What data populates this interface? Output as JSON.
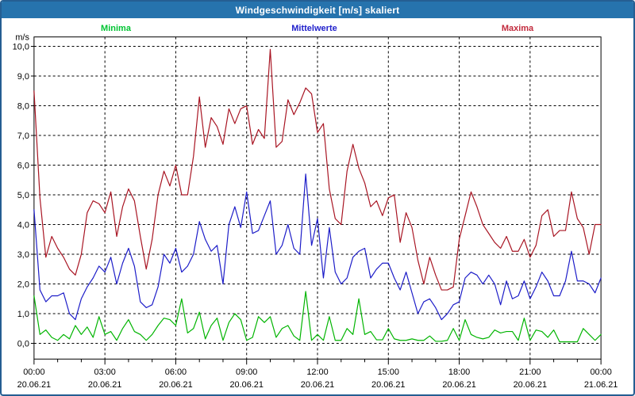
{
  "window": {
    "title": "Windgeschwindigkeit [m/s] skaliert",
    "titlebar_color": "#2673ad",
    "border_color": "#255e92"
  },
  "legend": {
    "items": [
      {
        "label": "Minima",
        "color": "#00c432"
      },
      {
        "label": "Mittelwerte",
        "color": "#2222cc"
      },
      {
        "label": "Maxima",
        "color": "#c22b3d"
      }
    ]
  },
  "chart_data": {
    "type": "line",
    "title": "Windgeschwindigkeit [m/s] skaliert",
    "ylabel": "m/s",
    "ylim": [
      0,
      10
    ],
    "grid": {
      "horizontal_step": 1,
      "vertical_step_hours": 3,
      "style": "dashed"
    },
    "y_ticks": [
      {
        "v": 0,
        "label": "0,0"
      },
      {
        "v": 1,
        "label": "1,0"
      },
      {
        "v": 2,
        "label": "2,0"
      },
      {
        "v": 3,
        "label": "3,0"
      },
      {
        "v": 4,
        "label": "4,0"
      },
      {
        "v": 5,
        "label": "5,0"
      },
      {
        "v": 6,
        "label": "6,0"
      },
      {
        "v": 7,
        "label": "7,0"
      },
      {
        "v": 8,
        "label": "8,0"
      },
      {
        "v": 9,
        "label": "9,0"
      },
      {
        "v": 10,
        "label": "10,0"
      }
    ],
    "x_axis": {
      "minor_tick_every_hours": 1,
      "major_ticks": [
        {
          "hour": 0,
          "time": "00:00",
          "date": "20.06.21"
        },
        {
          "hour": 3,
          "time": "03:00",
          "date": "20.06.21"
        },
        {
          "hour": 6,
          "time": "06:00",
          "date": "20.06.21"
        },
        {
          "hour": 9,
          "time": "09:00",
          "date": "20.06.21"
        },
        {
          "hour": 12,
          "time": "12:00",
          "date": "20.06.21"
        },
        {
          "hour": 15,
          "time": "15:00",
          "date": "20.06.21"
        },
        {
          "hour": 18,
          "time": "18:00",
          "date": "20.06.21"
        },
        {
          "hour": 21,
          "time": "21:00",
          "date": "20.06.21"
        },
        {
          "hour": 24,
          "time": "00:00",
          "date": "21.06.21"
        }
      ]
    },
    "x_step_minutes": 15,
    "x": [
      "00:00",
      "00:15",
      "00:30",
      "00:45",
      "01:00",
      "01:15",
      "01:30",
      "01:45",
      "02:00",
      "02:15",
      "02:30",
      "02:45",
      "03:00",
      "03:15",
      "03:30",
      "03:45",
      "04:00",
      "04:15",
      "04:30",
      "04:45",
      "05:00",
      "05:15",
      "05:30",
      "05:45",
      "06:00",
      "06:15",
      "06:30",
      "06:45",
      "07:00",
      "07:15",
      "07:30",
      "07:45",
      "08:00",
      "08:15",
      "08:30",
      "08:45",
      "09:00",
      "09:15",
      "09:30",
      "09:45",
      "10:00",
      "10:15",
      "10:30",
      "10:45",
      "11:00",
      "11:15",
      "11:30",
      "11:45",
      "12:00",
      "12:15",
      "12:30",
      "12:45",
      "13:00",
      "13:15",
      "13:30",
      "13:45",
      "14:00",
      "14:15",
      "14:30",
      "14:45",
      "15:00",
      "15:15",
      "15:30",
      "15:45",
      "16:00",
      "16:15",
      "16:30",
      "16:45",
      "17:00",
      "17:15",
      "17:30",
      "17:45",
      "18:00",
      "18:15",
      "18:30",
      "18:45",
      "19:00",
      "19:15",
      "19:30",
      "19:45",
      "20:00",
      "20:15",
      "20:30",
      "20:45",
      "21:00",
      "21:15",
      "21:30",
      "21:45",
      "22:00",
      "22:15",
      "22:30",
      "22:45",
      "23:00",
      "23:15",
      "23:30",
      "23:45",
      "00:00"
    ],
    "series": [
      {
        "name": "Maxima",
        "color": "#a81422",
        "values": [
          8.5,
          4.9,
          2.9,
          3.6,
          3.2,
          2.9,
          2.5,
          2.3,
          3.0,
          4.4,
          4.8,
          4.7,
          4.4,
          5.1,
          3.6,
          4.6,
          5.2,
          4.8,
          3.6,
          2.5,
          3.5,
          5.0,
          5.8,
          5.3,
          6.0,
          5.0,
          5.0,
          6.3,
          8.3,
          6.6,
          7.6,
          7.3,
          6.7,
          7.9,
          7.4,
          7.9,
          8.0,
          6.7,
          7.2,
          6.9,
          9.9,
          6.6,
          6.8,
          8.2,
          7.7,
          8.1,
          8.6,
          8.4,
          7.1,
          7.4,
          5.2,
          4.2,
          4.0,
          5.8,
          6.7,
          5.9,
          5.4,
          4.6,
          4.8,
          4.3,
          4.9,
          5.0,
          3.4,
          4.4,
          3.9,
          2.8,
          2.0,
          2.9,
          2.3,
          1.8,
          1.8,
          1.9,
          3.5,
          4.3,
          5.1,
          4.6,
          4.0,
          3.7,
          3.4,
          3.2,
          3.6,
          3.1,
          3.1,
          3.5,
          2.9,
          3.3,
          4.3,
          4.5,
          3.6,
          3.8,
          3.8,
          5.1,
          4.2,
          3.9,
          3.0,
          4.0,
          4.0
        ]
      },
      {
        "name": "Mittelwerte",
        "color": "#1c1cc8",
        "values": [
          4.5,
          1.8,
          1.4,
          1.6,
          1.6,
          1.7,
          1.0,
          0.8,
          1.5,
          1.9,
          2.2,
          2.6,
          2.4,
          2.9,
          2.0,
          2.7,
          3.2,
          2.6,
          1.4,
          1.2,
          1.3,
          1.9,
          3.0,
          2.7,
          3.2,
          2.4,
          2.6,
          3.0,
          4.1,
          3.5,
          3.1,
          3.3,
          2.0,
          4.0,
          4.6,
          3.9,
          5.1,
          3.7,
          3.8,
          4.3,
          4.8,
          3.0,
          3.3,
          4.0,
          3.2,
          3.0,
          5.7,
          3.3,
          4.2,
          2.2,
          3.9,
          2.4,
          2.0,
          2.2,
          2.9,
          3.1,
          3.2,
          2.2,
          2.5,
          2.7,
          2.7,
          2.2,
          1.8,
          2.4,
          1.7,
          1.0,
          1.4,
          1.5,
          1.2,
          0.8,
          1.0,
          1.3,
          1.4,
          2.2,
          2.4,
          2.3,
          2.0,
          2.3,
          2.0,
          1.3,
          2.1,
          1.5,
          1.6,
          2.1,
          1.5,
          1.9,
          2.4,
          2.1,
          1.6,
          1.6,
          2.1,
          3.1,
          2.1,
          2.1,
          2.0,
          1.7,
          2.2
        ]
      },
      {
        "name": "Minima",
        "color": "#00b400",
        "values": [
          1.6,
          0.3,
          0.45,
          0.2,
          0.1,
          0.3,
          0.15,
          0.6,
          0.3,
          0.55,
          0.2,
          0.9,
          0.3,
          0.4,
          0.1,
          0.5,
          0.8,
          0.4,
          0.3,
          0.1,
          0.3,
          0.6,
          0.85,
          0.8,
          0.6,
          1.5,
          0.35,
          0.5,
          1.05,
          0.15,
          0.6,
          0.85,
          0.1,
          0.7,
          1.0,
          0.8,
          0.1,
          0.2,
          0.9,
          0.7,
          0.9,
          0.2,
          0.5,
          0.6,
          0.25,
          0.1,
          1.75,
          0.1,
          0.3,
          0.1,
          0.9,
          0.1,
          0.1,
          0.5,
          0.3,
          1.5,
          0.3,
          0.4,
          0.12,
          0.12,
          0.5,
          0.15,
          0.1,
          0.1,
          0.15,
          0.1,
          0.1,
          0.25,
          0.07,
          0.07,
          0.1,
          0.5,
          0.1,
          0.8,
          0.3,
          0.2,
          0.15,
          0.2,
          0.45,
          0.35,
          0.4,
          0.4,
          0.1,
          0.85,
          0.1,
          0.45,
          0.4,
          0.2,
          0.45,
          0.05,
          0.05,
          0.05,
          0.05,
          0.5,
          0.3,
          0.1,
          0.3
        ]
      }
    ]
  }
}
